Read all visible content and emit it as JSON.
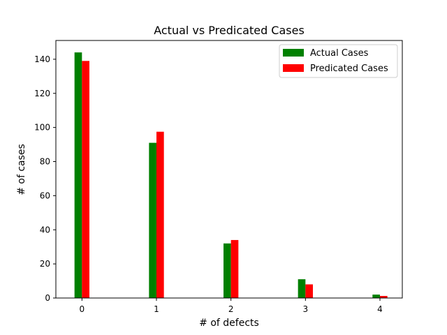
{
  "chart_data": {
    "type": "bar",
    "title": "Actual vs Predicated Cases",
    "xlabel": "# of defects",
    "ylabel": "# of cases",
    "categories": [
      "0",
      "1",
      "2",
      "3",
      "4"
    ],
    "x": [
      0,
      1,
      2,
      3,
      4
    ],
    "xlim": [
      -0.35,
      4.3
    ],
    "ylim": [
      0,
      151
    ],
    "yticks": [
      0,
      20,
      40,
      60,
      80,
      100,
      120,
      140
    ],
    "series": [
      {
        "name": "Actual Cases",
        "color": "#008000",
        "values": [
          144,
          91,
          32,
          11,
          2
        ]
      },
      {
        "name": "Predicated Cases",
        "color": "#ff0000",
        "values": [
          139,
          97.5,
          34,
          8,
          1.2
        ]
      }
    ],
    "legend": "top-right",
    "grid": false
  }
}
